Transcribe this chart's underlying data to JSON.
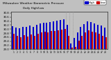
{
  "title": "Milwaukee Weather Barometric Pressure",
  "subtitle": "Daily High/Low",
  "legend_high": "High",
  "legend_low": "Low",
  "high_color": "#0000cc",
  "low_color": "#cc0000",
  "background_color": "#c0c0c0",
  "plot_bg_color": "#c0c0c0",
  "text_color": "#000000",
  "ylim": [
    29.0,
    30.85
  ],
  "ytick_labels": [
    "29.0",
    "29.2",
    "29.4",
    "29.6",
    "29.8",
    "30.0",
    "30.2",
    "30.4",
    "30.6",
    "30.8"
  ],
  "ytick_values": [
    29.0,
    29.2,
    29.4,
    29.6,
    29.8,
    30.0,
    30.2,
    30.4,
    30.6,
    30.8
  ],
  "bar_width": 0.4,
  "categories": [
    "1",
    "2",
    "3",
    "4",
    "5",
    "6",
    "7",
    "8",
    "9",
    "10",
    "11",
    "12",
    "13",
    "14",
    "15",
    "16",
    "17",
    "18",
    "19",
    "20",
    "21",
    "22",
    "23",
    "24",
    "25",
    "26",
    "27",
    "28"
  ],
  "high_values": [
    30.15,
    30.08,
    30.05,
    30.1,
    30.12,
    30.18,
    30.1,
    30.22,
    30.28,
    30.32,
    30.3,
    30.35,
    30.38,
    30.42,
    30.45,
    30.48,
    30.2,
    29.3,
    29.55,
    29.85,
    30.1,
    30.25,
    30.4,
    30.35,
    30.28,
    30.22,
    30.18,
    30.08
  ],
  "low_values": [
    29.75,
    29.68,
    29.6,
    29.7,
    29.62,
    29.72,
    29.65,
    29.78,
    29.82,
    29.88,
    29.85,
    29.9,
    29.92,
    29.95,
    29.98,
    30.02,
    29.68,
    29.08,
    29.12,
    29.42,
    29.68,
    29.82,
    29.95,
    29.88,
    29.82,
    29.78,
    29.68,
    29.58
  ],
  "vline_positions": [
    15.5,
    16.5,
    17.5
  ],
  "vline_color": "#888888",
  "legend_box_color": "#ffffff"
}
